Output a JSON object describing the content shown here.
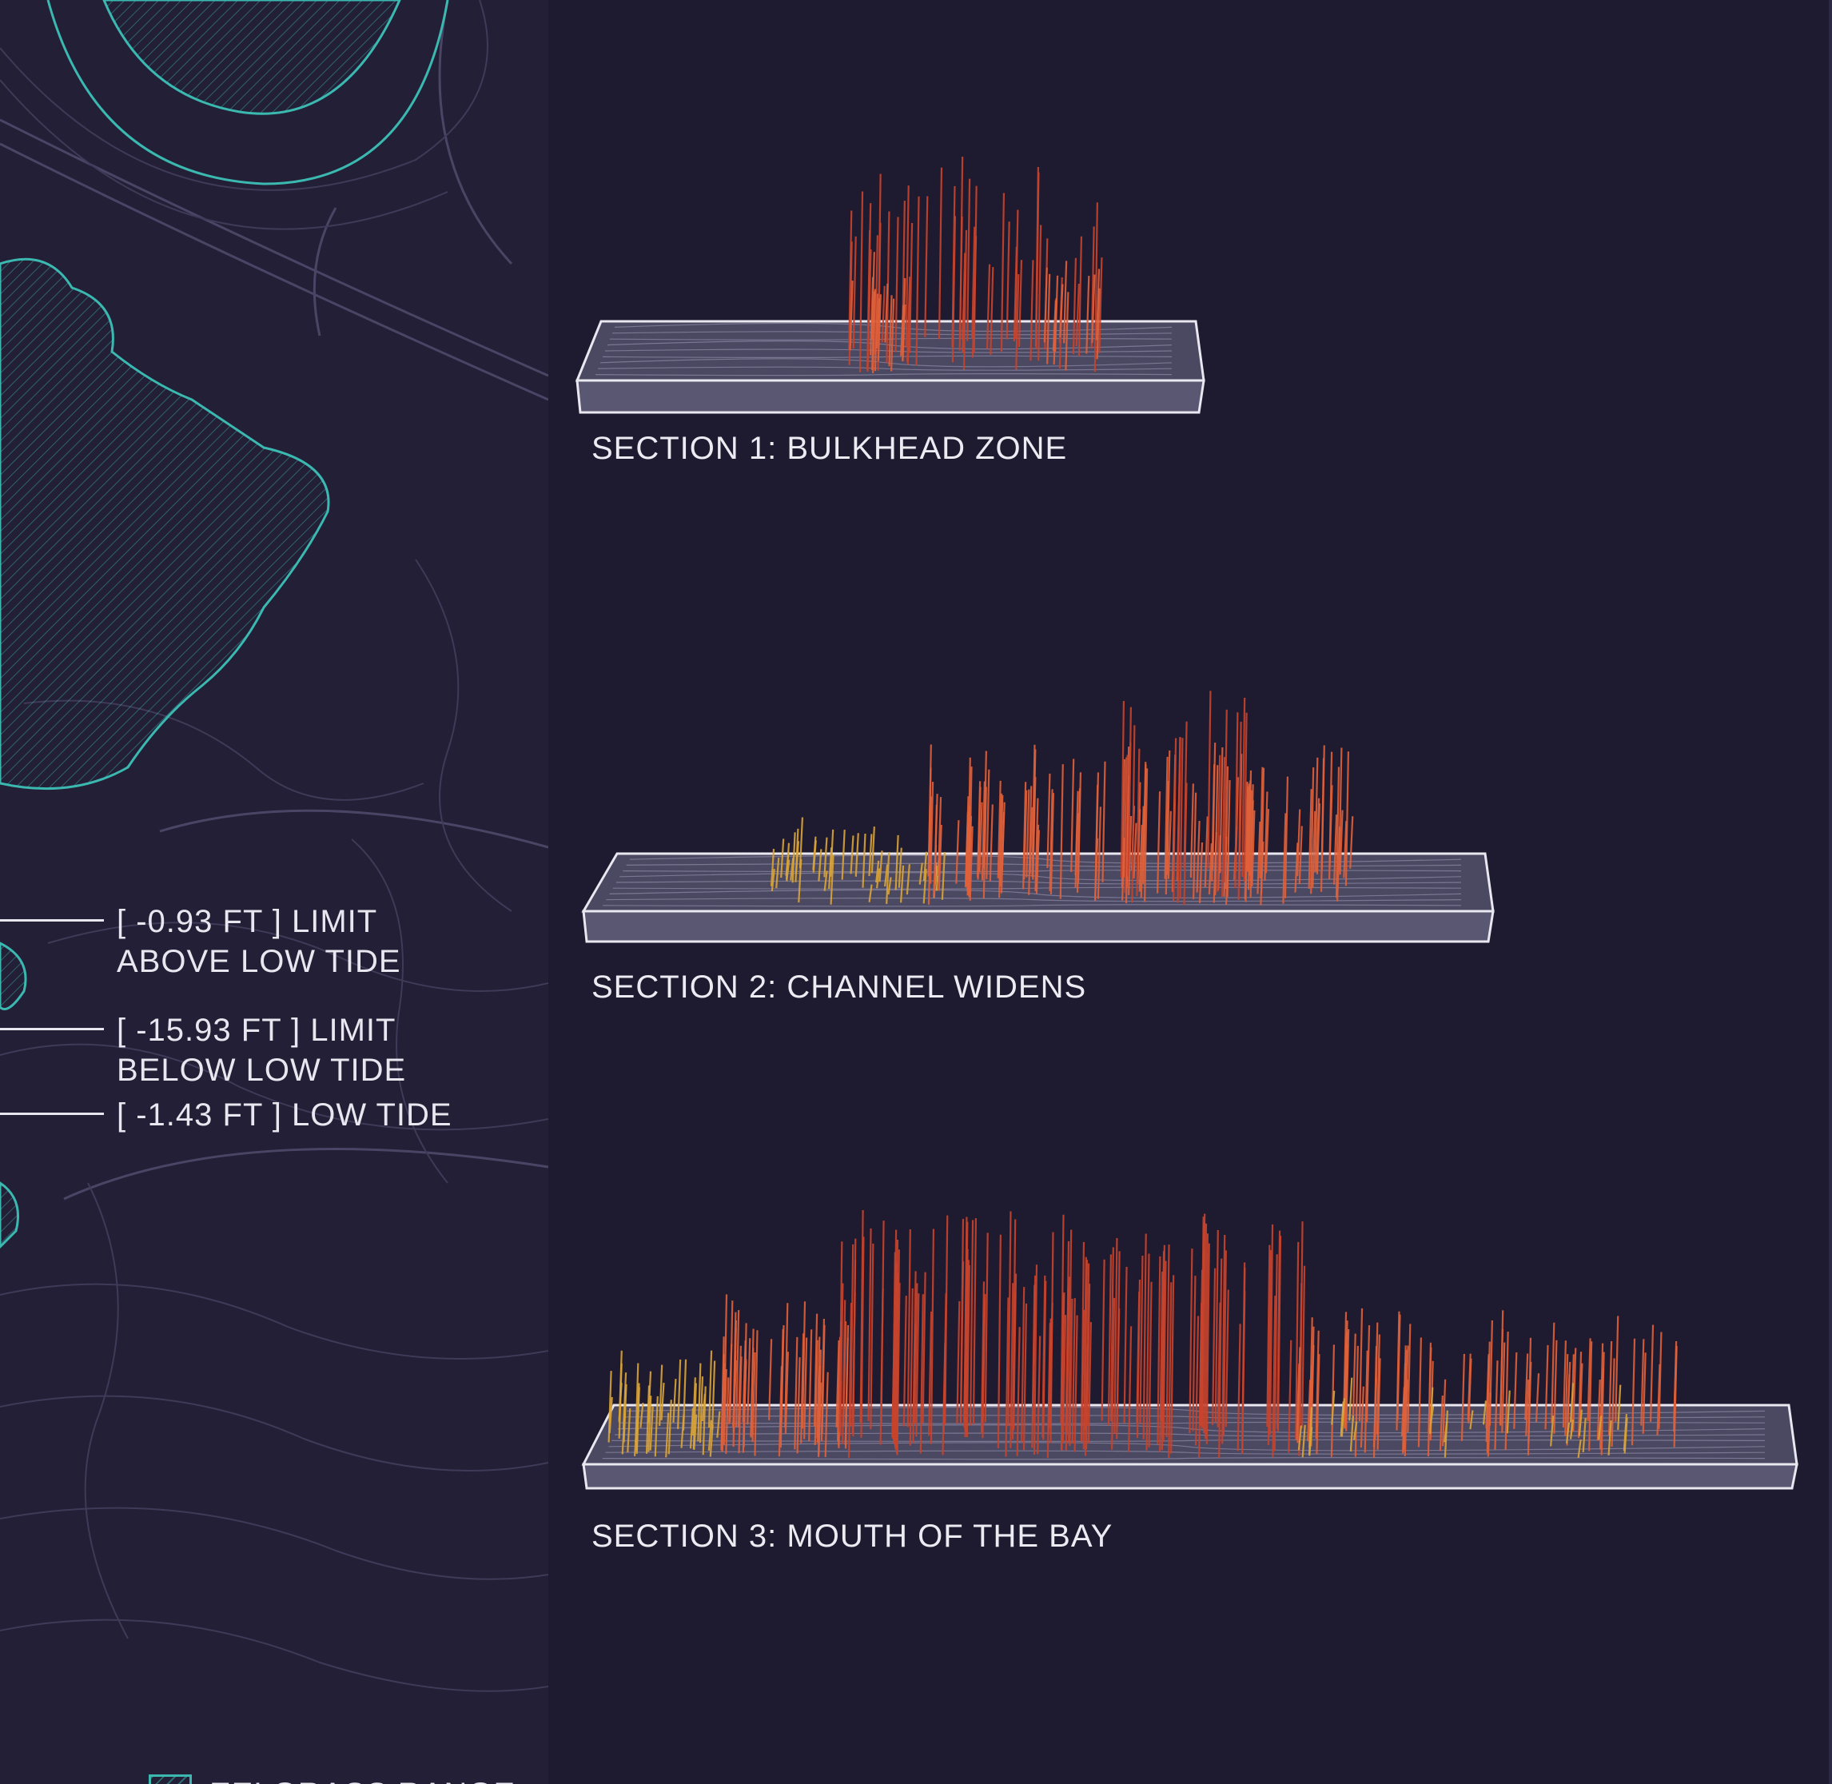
{
  "map": {
    "tide_markers": [
      {
        "lines": [
          "[ -0.93 FT ] LIMIT",
          "ABOVE LOW TIDE"
        ]
      },
      {
        "lines": [
          "[ -15.93 FT ] LIMIT",
          "BELOW LOW TIDE"
        ]
      },
      {
        "lines": [
          "[ -1.43 FT ] LOW TIDE"
        ]
      }
    ],
    "legend": {
      "label": "EELGRASS RANGE",
      "swatch_color": "#3bb8b0"
    }
  },
  "sections": [
    {
      "label": "SECTION 1: BULKHEAD ZONE"
    },
    {
      "label": "SECTION 2: CHANNEL WIDENS"
    },
    {
      "label": "SECTION 3: MOUTH OF THE BAY"
    }
  ],
  "colors": {
    "background": "#1e1b31",
    "contour": "#4a4565",
    "eelgrass": "#3bb8b0",
    "deep_bar": "#c8442c",
    "mid_bar": "#e0603a",
    "shallow_bar": "#d9a437",
    "slab_fill": "#4b4862",
    "slab_edge": "#e9e7f0"
  }
}
